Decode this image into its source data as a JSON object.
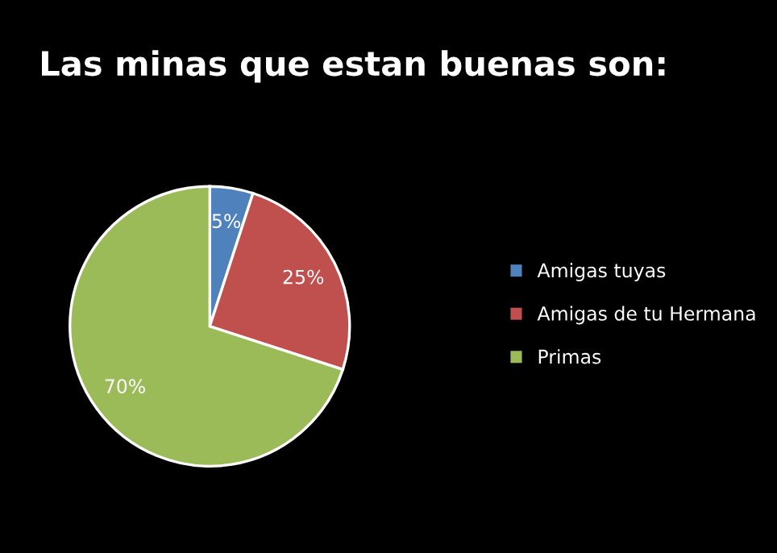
{
  "chart_data": {
    "type": "pie",
    "title": "Las minas que estan buenas son:",
    "categories": [
      "Amigas tuyas",
      "Amigas de tu Hermana",
      "Primas"
    ],
    "values": [
      5,
      25,
      70
    ],
    "colors": [
      "#4f81bd",
      "#c0504d",
      "#9bbb59"
    ],
    "value_labels": [
      "5%",
      "25%",
      "70%"
    ],
    "legend": "right"
  }
}
